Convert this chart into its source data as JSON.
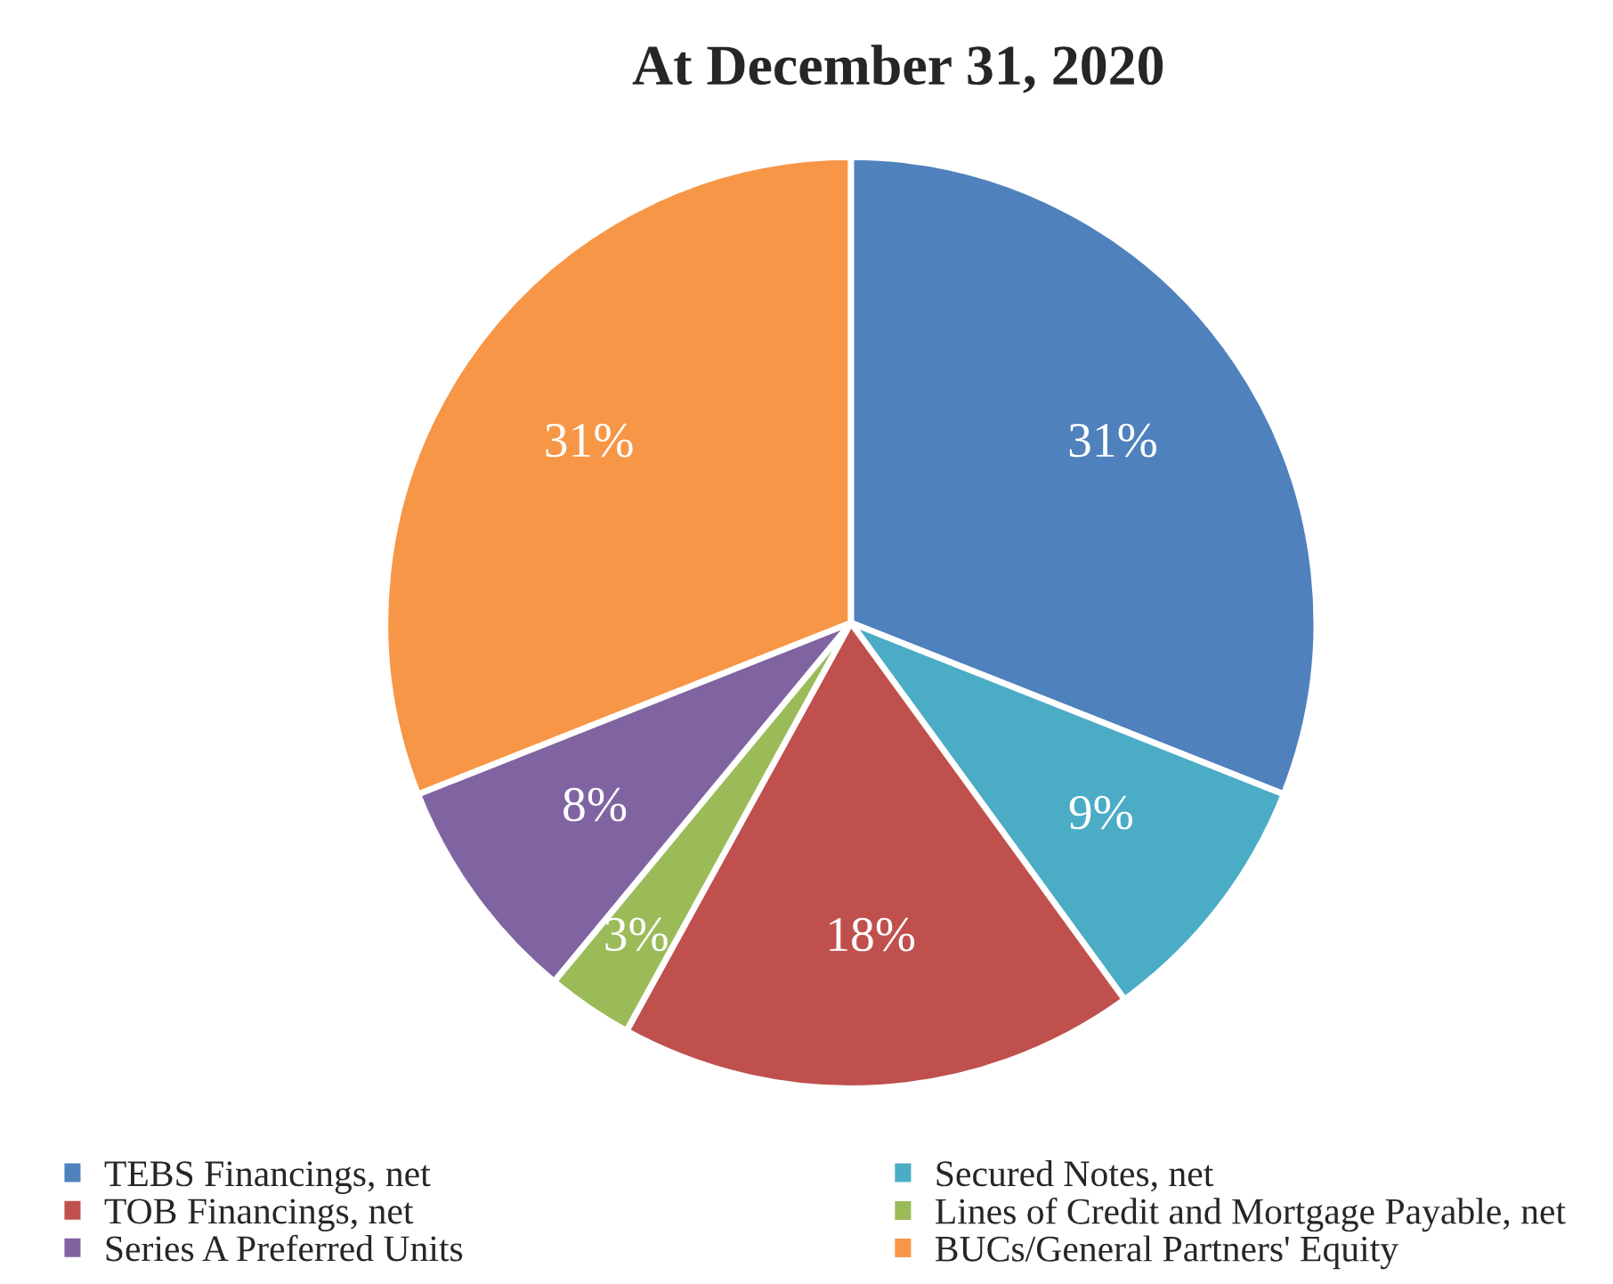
{
  "chart_data": {
    "type": "pie",
    "title": "At December 31, 2020",
    "categories": [
      "TEBS Financings, net",
      "Secured Notes, net",
      "TOB Financings, net",
      "Lines of Credit and Mortgage Payable, net",
      "Series A Preferred Units",
      "BUCs/General Partners' Equity"
    ],
    "values": [
      31,
      9,
      18,
      3,
      8,
      31
    ],
    "colors": [
      "#4f81bd",
      "#4bacc6",
      "#c0504d",
      "#9bbb59",
      "#8064a2",
      "#f79646"
    ],
    "value_labels": [
      "31%",
      "9%",
      "18%",
      "3%",
      "8%",
      "31%"
    ],
    "legend": "bottom"
  }
}
